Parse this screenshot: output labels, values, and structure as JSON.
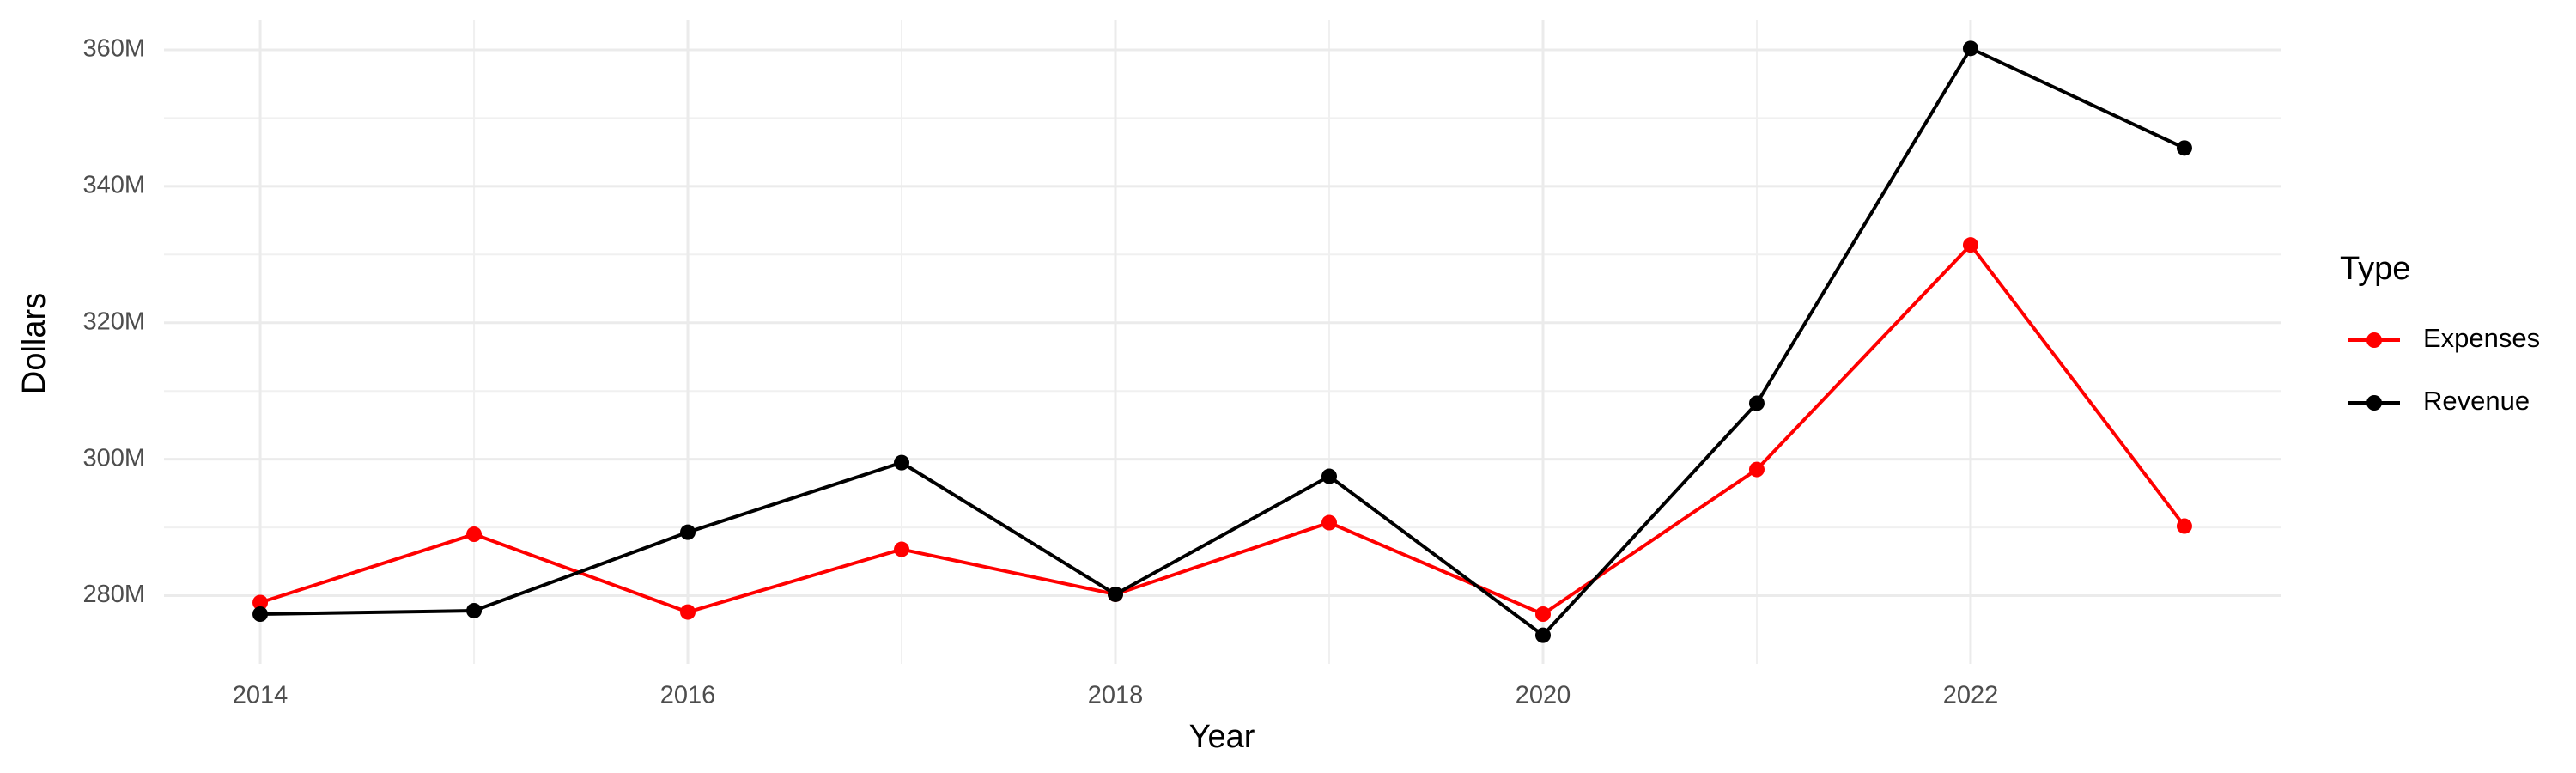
{
  "chart_data": {
    "type": "line",
    "x_label": "Year",
    "y_label": "Dollars",
    "legend_title": "Type",
    "legend": "right",
    "grid": true,
    "x": [
      2014,
      2015,
      2016,
      2017,
      2018,
      2019,
      2020,
      2021,
      2022,
      2023
    ],
    "series": [
      {
        "name": "Expenses",
        "color": "#ff0000",
        "values": [
          279000000,
          289000000,
          277600000,
          286800000,
          280200000,
          290700000,
          277300000,
          298500000,
          331400000,
          290200000
        ]
      },
      {
        "name": "Revenue",
        "color": "#000000",
        "values": [
          277300000,
          277800000,
          289300000,
          299500000,
          280200000,
          297500000,
          274200000,
          308200000,
          360200000,
          345600000
        ]
      }
    ],
    "xlim": [
      2013.55,
      2023.45
    ],
    "xticks": [
      2014,
      2016,
      2018,
      2020,
      2022
    ],
    "ylim": [
      270000000,
      364400000
    ],
    "yticks": [
      {
        "value": 280000000,
        "label": "280M"
      },
      {
        "value": 300000000,
        "label": "300M"
      },
      {
        "value": 320000000,
        "label": "320M"
      },
      {
        "value": 340000000,
        "label": "340M"
      },
      {
        "value": 360000000,
        "label": "360M"
      }
    ]
  }
}
